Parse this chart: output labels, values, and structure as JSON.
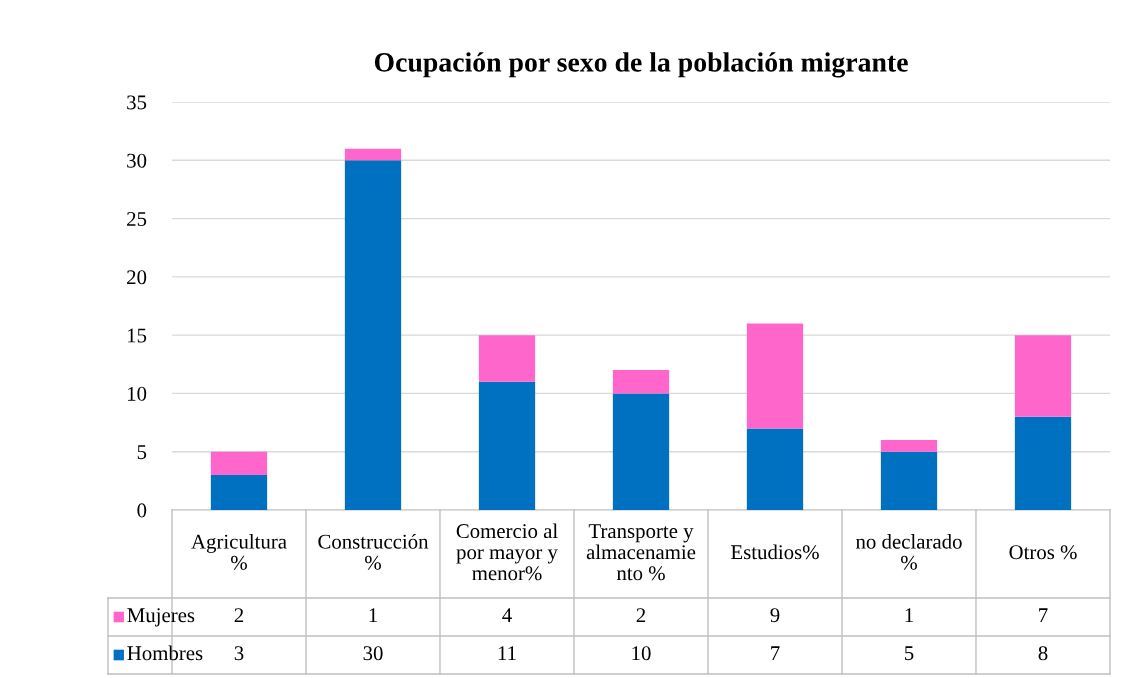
{
  "chart_data": {
    "type": "bar",
    "title": "Ocupación por sexo de la población migrante",
    "categories": [
      "Agricultura %",
      "Construcción %",
      "Comercio al por mayor y menor%",
      "Transporte y almacenamiento %",
      "Estudios%",
      "no declarado %",
      "Otros %"
    ],
    "series": [
      {
        "name": "Hombres",
        "color": "#0070c0",
        "values": [
          3,
          30,
          11,
          10,
          7,
          5,
          8
        ]
      },
      {
        "name": "Mujeres",
        "color": "#ff66cc",
        "values": [
          2,
          1,
          4,
          2,
          9,
          1,
          7
        ]
      }
    ],
    "stacked": true,
    "ylim": [
      0,
      35
    ],
    "yticks": [
      0,
      5,
      10,
      15,
      20,
      25,
      30,
      35
    ],
    "grid": "y",
    "legend": "bottom",
    "data_labels": true
  }
}
